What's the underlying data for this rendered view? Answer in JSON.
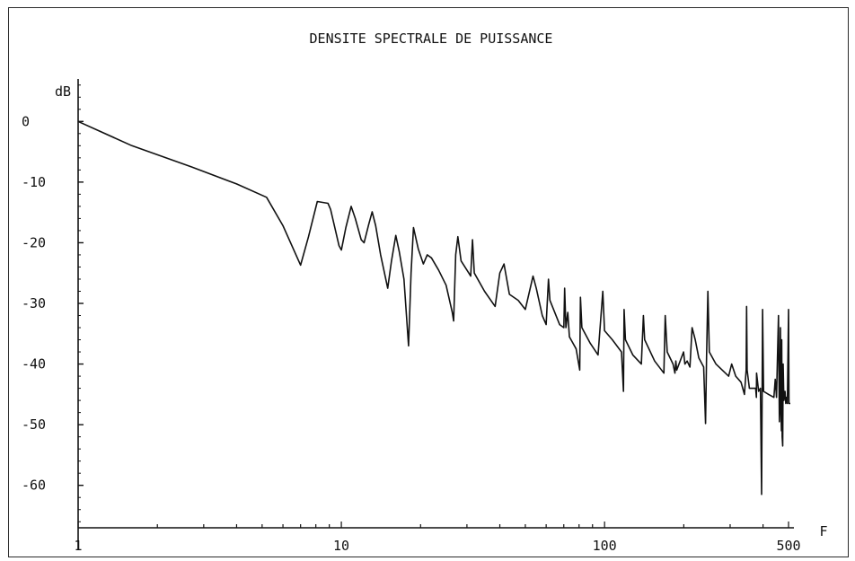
{
  "chart_data": {
    "type": "line",
    "title": "DENSITE SPECTRALE DE PUISSANCE",
    "xlabel": "F",
    "ylabel": "dB",
    "x_scale": "log",
    "xlim": [
      1,
      500
    ],
    "ylim": [
      -67,
      7
    ],
    "xticks": [
      {
        "value": 1,
        "label": "1"
      },
      {
        "value": 10,
        "label": "10"
      },
      {
        "value": 100,
        "label": "100"
      },
      {
        "value": 500,
        "label": "500"
      }
    ],
    "yticks": [
      {
        "value": 0,
        "label": "0"
      },
      {
        "value": -10,
        "label": "-10"
      },
      {
        "value": -20,
        "label": "-20"
      },
      {
        "value": -30,
        "label": "-30"
      },
      {
        "value": -40,
        "label": "-40"
      },
      {
        "value": -50,
        "label": "-50"
      },
      {
        "value": -60,
        "label": "-60"
      }
    ],
    "grid": false,
    "series": [
      {
        "color": "#111111",
        "points": [
          [
            1,
            0
          ],
          [
            1.6,
            -4
          ],
          [
            2.7,
            -7.5
          ],
          [
            4.0,
            -10.3
          ],
          [
            5.2,
            -12.5
          ],
          [
            6.0,
            -17.2
          ],
          [
            7.0,
            -23.7
          ],
          [
            7.5,
            -19.0
          ],
          [
            8.1,
            -13.2
          ],
          [
            8.9,
            -13.5
          ],
          [
            9.1,
            -14.5
          ],
          [
            9.8,
            -20.5
          ],
          [
            10.0,
            -21.2
          ],
          [
            10.4,
            -17.5
          ],
          [
            10.9,
            -14.0
          ],
          [
            11.3,
            -16.0
          ],
          [
            11.9,
            -19.5
          ],
          [
            12.2,
            -20.0
          ],
          [
            12.7,
            -17.0
          ],
          [
            13.1,
            -14.9
          ],
          [
            13.5,
            -17.2
          ],
          [
            14.1,
            -22.0
          ],
          [
            15.0,
            -27.5
          ],
          [
            15.5,
            -23.0
          ],
          [
            16.1,
            -18.8
          ],
          [
            16.6,
            -21.5
          ],
          [
            17.3,
            -26.0
          ],
          [
            18.0,
            -37.0
          ],
          [
            18.4,
            -25.0
          ],
          [
            18.8,
            -17.5
          ],
          [
            19.6,
            -21.0
          ],
          [
            20.5,
            -23.5
          ],
          [
            21.2,
            -22.0
          ],
          [
            22.0,
            -22.5
          ],
          [
            23.4,
            -24.5
          ],
          [
            25.0,
            -27.0
          ],
          [
            26.4,
            -31.5
          ],
          [
            26.7,
            -32.9
          ],
          [
            27.2,
            -22.0
          ],
          [
            27.7,
            -19.0
          ],
          [
            28.5,
            -23.0
          ],
          [
            30.5,
            -25.0
          ],
          [
            31.0,
            -25.5
          ],
          [
            31.5,
            -19.5
          ],
          [
            32.0,
            -25.0
          ],
          [
            35.0,
            -28.0
          ],
          [
            38.4,
            -30.5
          ],
          [
            40.0,
            -25.0
          ],
          [
            41.5,
            -23.5
          ],
          [
            43.5,
            -28.5
          ],
          [
            47.0,
            -29.5
          ],
          [
            50.0,
            -31.0
          ],
          [
            53.5,
            -25.5
          ],
          [
            55.0,
            -27.5
          ],
          [
            58.0,
            -32.0
          ],
          [
            60.0,
            -33.5
          ],
          [
            61.2,
            -26.0
          ],
          [
            62.0,
            -29.5
          ],
          [
            67.5,
            -33.5
          ],
          [
            70.0,
            -34.0
          ],
          [
            70.5,
            -27.5
          ],
          [
            71.3,
            -34.0
          ],
          [
            72.5,
            -31.5
          ],
          [
            73.5,
            -35.5
          ],
          [
            78.0,
            -37.5
          ],
          [
            80.5,
            -41.0
          ],
          [
            81.0,
            -29.0
          ],
          [
            82.0,
            -34.0
          ],
          [
            88.0,
            -36.5
          ],
          [
            94.5,
            -38.5
          ],
          [
            98.5,
            -28.0
          ],
          [
            100.0,
            -34.5
          ],
          [
            107.0,
            -36.0
          ],
          [
            116.0,
            -38.0
          ],
          [
            118.0,
            -44.5
          ],
          [
            118.6,
            -31.0
          ],
          [
            120.0,
            -36.0
          ],
          [
            128.0,
            -38.5
          ],
          [
            138.0,
            -40.0
          ],
          [
            140.5,
            -32.0
          ],
          [
            142.0,
            -36.0
          ],
          [
            155.0,
            -39.5
          ],
          [
            168.0,
            -41.5
          ],
          [
            170.0,
            -32.0
          ],
          [
            173.0,
            -38.0
          ],
          [
            182.0,
            -40.0
          ],
          [
            185.0,
            -41.5
          ],
          [
            186.5,
            -39.5
          ],
          [
            188.0,
            -41.0
          ],
          [
            199.5,
            -38.0
          ],
          [
            202.0,
            -40.0
          ],
          [
            206.0,
            -39.5
          ],
          [
            211.0,
            -40.5
          ],
          [
            215.0,
            -34.0
          ],
          [
            221.0,
            -36.0
          ],
          [
            228.0,
            -39.0
          ],
          [
            238.0,
            -40.5
          ],
          [
            242.0,
            -49.8
          ],
          [
            244.0,
            -39.0
          ],
          [
            247.0,
            -28.0
          ],
          [
            250.0,
            -38.0
          ],
          [
            265.0,
            -40.0
          ],
          [
            280.0,
            -41.0
          ],
          [
            296.0,
            -42.0
          ],
          [
            304.0,
            -40.0
          ],
          [
            315.0,
            -42.0
          ],
          [
            330.0,
            -43.0
          ],
          [
            340.0,
            -45.0
          ],
          [
            345.0,
            -41.0
          ],
          [
            346.5,
            -30.5
          ],
          [
            348.0,
            -41.0
          ],
          [
            355.0,
            -44.0
          ],
          [
            375.0,
            -44.0
          ],
          [
            377.5,
            -45.5
          ],
          [
            378.0,
            -41.5
          ],
          [
            385.0,
            -44.5
          ],
          [
            391.0,
            -44.0
          ],
          [
            395.0,
            -61.5
          ],
          [
            398.5,
            -31.0
          ],
          [
            402.0,
            -44.5
          ],
          [
            420.0,
            -45.0
          ],
          [
            440.0,
            -45.5
          ],
          [
            445.0,
            -42.5
          ],
          [
            450.0,
            -45.5
          ],
          [
            458.0,
            -32.0
          ],
          [
            461.5,
            -49.5
          ],
          [
            463.5,
            -46.0
          ],
          [
            466.0,
            -34.0
          ],
          [
            468.0,
            -48.0
          ],
          [
            470.0,
            -51.0
          ],
          [
            471.0,
            -36.0
          ],
          [
            473.0,
            -52.0
          ],
          [
            475.0,
            -53.5
          ],
          [
            477.0,
            -40.0
          ],
          [
            480.0,
            -46.0
          ],
          [
            485.0,
            -44.5
          ],
          [
            488.0,
            -46.5
          ],
          [
            492.0,
            -45.5
          ],
          [
            495.0,
            -46.5
          ],
          [
            500.0,
            -31.0
          ],
          [
            502.0,
            -46.5
          ],
          [
            508.0,
            -46.5
          ]
        ]
      }
    ]
  }
}
